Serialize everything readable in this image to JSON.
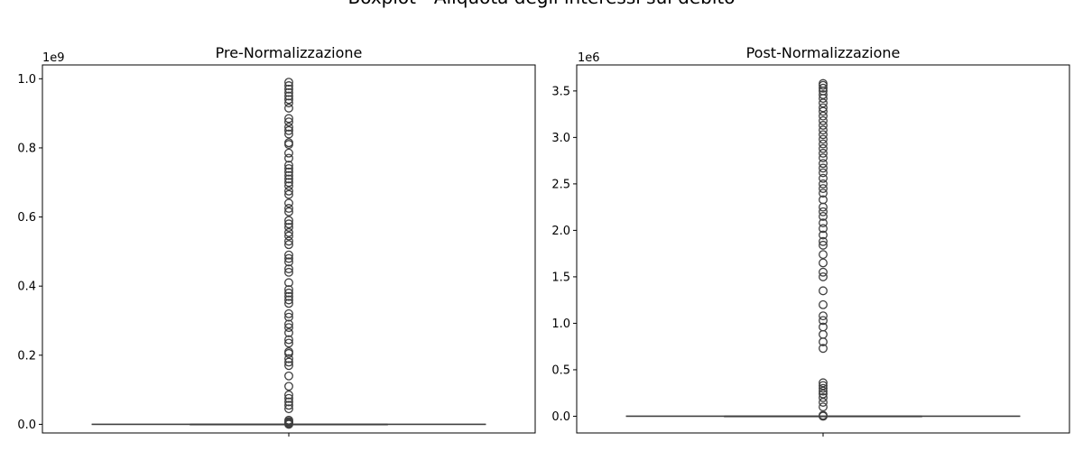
{
  "figure": {
    "suptitle": "Boxplot - Aliquota degli interessi sul debito"
  },
  "chart_data": [
    {
      "type": "box",
      "title": "Pre-Normalizzazione",
      "xlabel": "",
      "ylabel": "",
      "ylim": [
        -0.025,
        1.04
      ],
      "offset_label": "1e9",
      "y_ticks": [
        0.0,
        0.2,
        0.4,
        0.6,
        0.8,
        1.0
      ],
      "y_tick_labels": [
        "0.0",
        "0.2",
        "0.4",
        "0.6",
        "0.8",
        "1.0"
      ],
      "box": {
        "min": 0.0,
        "q1": 0.0,
        "median": 0.0,
        "q3": 0.0,
        "max": 0.0
      },
      "outliers": [
        0.0,
        0.002,
        0.005,
        0.008,
        0.012,
        0.045,
        0.055,
        0.065,
        0.075,
        0.085,
        0.11,
        0.14,
        0.17,
        0.18,
        0.19,
        0.205,
        0.21,
        0.235,
        0.245,
        0.265,
        0.28,
        0.29,
        0.31,
        0.32,
        0.35,
        0.36,
        0.37,
        0.38,
        0.39,
        0.41,
        0.44,
        0.45,
        0.47,
        0.48,
        0.49,
        0.52,
        0.53,
        0.545,
        0.555,
        0.57,
        0.58,
        0.59,
        0.615,
        0.625,
        0.64,
        0.665,
        0.675,
        0.69,
        0.7,
        0.71,
        0.72,
        0.73,
        0.74,
        0.75,
        0.77,
        0.785,
        0.81,
        0.815,
        0.84,
        0.85,
        0.86,
        0.875,
        0.885,
        0.915,
        0.93,
        0.94,
        0.95,
        0.96,
        0.97,
        0.98,
        0.99
      ]
    },
    {
      "type": "box",
      "title": "Post-Normalizzazione",
      "xlabel": "",
      "ylabel": "",
      "ylim": [
        -0.18,
        3.78
      ],
      "offset_label": "1e6",
      "y_ticks": [
        0.0,
        0.5,
        1.0,
        1.5,
        2.0,
        2.5,
        3.0,
        3.5
      ],
      "y_tick_labels": [
        "0.0",
        "0.5",
        "1.0",
        "1.5",
        "2.0",
        "2.5",
        "3.0",
        "3.5"
      ],
      "box": {
        "min": 0.0,
        "q1": 0.0,
        "median": 0.0,
        "q3": 0.0,
        "max": 0.0
      },
      "outliers": [
        0.0,
        0.01,
        0.1,
        0.15,
        0.2,
        0.24,
        0.27,
        0.3,
        0.33,
        0.36,
        0.73,
        0.8,
        0.88,
        0.96,
        1.03,
        1.08,
        1.2,
        1.35,
        1.5,
        1.55,
        1.65,
        1.74,
        1.84,
        1.88,
        1.95,
        2.02,
        2.08,
        2.15,
        2.2,
        2.25,
        2.33,
        2.4,
        2.45,
        2.5,
        2.56,
        2.62,
        2.67,
        2.72,
        2.78,
        2.83,
        2.88,
        2.93,
        2.98,
        3.03,
        3.08,
        3.13,
        3.18,
        3.23,
        3.28,
        3.32,
        3.37,
        3.42,
        3.46,
        3.5,
        3.53,
        3.56,
        3.58
      ]
    }
  ]
}
